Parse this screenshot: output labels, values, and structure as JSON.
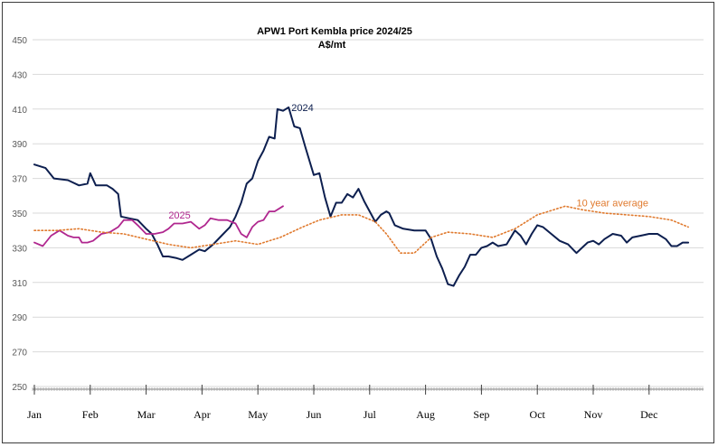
{
  "chart_data": {
    "type": "line",
    "title": "APW1 Port Kembla price 2024/25",
    "subtitle": "A$/mt",
    "ylim": [
      250,
      450
    ],
    "yticks": [
      250,
      270,
      290,
      310,
      330,
      350,
      370,
      390,
      410,
      430,
      450
    ],
    "grid": true,
    "months": [
      "Jan",
      "Feb",
      "Mar",
      "Apr",
      "May",
      "Jun",
      "Jul",
      "Aug",
      "Sep",
      "Oct",
      "Nov",
      "Dec"
    ],
    "series": [
      {
        "name": "2024",
        "color": "#0d1f4f",
        "style": "solid",
        "points": [
          [
            0.0,
            378
          ],
          [
            0.2,
            376
          ],
          [
            0.35,
            370
          ],
          [
            0.6,
            369
          ],
          [
            0.8,
            366
          ],
          [
            0.95,
            367
          ],
          [
            1.0,
            373
          ],
          [
            1.1,
            366
          ],
          [
            1.3,
            366
          ],
          [
            1.4,
            364
          ],
          [
            1.5,
            361
          ],
          [
            1.55,
            348
          ],
          [
            1.7,
            347
          ],
          [
            1.85,
            346
          ],
          [
            2.0,
            341
          ],
          [
            2.1,
            338
          ],
          [
            2.2,
            332
          ],
          [
            2.3,
            325
          ],
          [
            2.4,
            325
          ],
          [
            2.55,
            324
          ],
          [
            2.65,
            323
          ],
          [
            2.8,
            326
          ],
          [
            2.95,
            329
          ],
          [
            3.05,
            328
          ],
          [
            3.2,
            332
          ],
          [
            3.35,
            337
          ],
          [
            3.5,
            342
          ],
          [
            3.6,
            348
          ],
          [
            3.7,
            356
          ],
          [
            3.8,
            367
          ],
          [
            3.9,
            370
          ],
          [
            4.0,
            380
          ],
          [
            4.1,
            386
          ],
          [
            4.2,
            394
          ],
          [
            4.3,
            393
          ],
          [
            4.35,
            410
          ],
          [
            4.45,
            409
          ],
          [
            4.55,
            411
          ],
          [
            4.65,
            400
          ],
          [
            4.75,
            399
          ],
          [
            4.85,
            388
          ],
          [
            5.0,
            372
          ],
          [
            5.1,
            373
          ],
          [
            5.2,
            359
          ],
          [
            5.3,
            348
          ],
          [
            5.4,
            356
          ],
          [
            5.5,
            356
          ],
          [
            5.6,
            361
          ],
          [
            5.7,
            359
          ],
          [
            5.8,
            364
          ],
          [
            5.9,
            357
          ],
          [
            6.0,
            351
          ],
          [
            6.1,
            345
          ],
          [
            6.2,
            349
          ],
          [
            6.3,
            351
          ],
          [
            6.35,
            350
          ],
          [
            6.45,
            343
          ],
          [
            6.6,
            341
          ],
          [
            6.8,
            340
          ],
          [
            7.0,
            340
          ],
          [
            7.1,
            335
          ],
          [
            7.2,
            325
          ],
          [
            7.3,
            318
          ],
          [
            7.4,
            309
          ],
          [
            7.5,
            308
          ],
          [
            7.6,
            314
          ],
          [
            7.7,
            319
          ],
          [
            7.8,
            326
          ],
          [
            7.9,
            326
          ],
          [
            8.0,
            330
          ],
          [
            8.1,
            331
          ],
          [
            8.2,
            333
          ],
          [
            8.3,
            331
          ],
          [
            8.45,
            332
          ],
          [
            8.6,
            340
          ],
          [
            8.7,
            337
          ],
          [
            8.8,
            332
          ],
          [
            8.9,
            338
          ],
          [
            9.0,
            343
          ],
          [
            9.1,
            342
          ],
          [
            9.25,
            338
          ],
          [
            9.4,
            334
          ],
          [
            9.55,
            332
          ],
          [
            9.7,
            327
          ],
          [
            9.8,
            330
          ],
          [
            9.9,
            333
          ],
          [
            10.0,
            334
          ],
          [
            10.1,
            332
          ],
          [
            10.2,
            335
          ],
          [
            10.35,
            338
          ],
          [
            10.5,
            337
          ],
          [
            10.6,
            333
          ],
          [
            10.7,
            336
          ],
          [
            10.85,
            337
          ],
          [
            11.0,
            338
          ],
          [
            11.15,
            338
          ],
          [
            11.3,
            335
          ],
          [
            11.4,
            331
          ],
          [
            11.5,
            331
          ],
          [
            11.6,
            333
          ],
          [
            11.7,
            333
          ]
        ]
      },
      {
        "name": "2025",
        "color": "#b0278f",
        "style": "solid",
        "points": [
          [
            0.0,
            333
          ],
          [
            0.15,
            331
          ],
          [
            0.3,
            337
          ],
          [
            0.45,
            340
          ],
          [
            0.6,
            337
          ],
          [
            0.7,
            336
          ],
          [
            0.8,
            336
          ],
          [
            0.85,
            333
          ],
          [
            0.95,
            333
          ],
          [
            1.05,
            334
          ],
          [
            1.2,
            338
          ],
          [
            1.35,
            339
          ],
          [
            1.5,
            342
          ],
          [
            1.6,
            346
          ],
          [
            1.75,
            346
          ],
          [
            1.85,
            343
          ],
          [
            2.0,
            338
          ],
          [
            2.15,
            338
          ],
          [
            2.3,
            339
          ],
          [
            2.4,
            341
          ],
          [
            2.5,
            344
          ],
          [
            2.65,
            344
          ],
          [
            2.8,
            345
          ],
          [
            2.95,
            341
          ],
          [
            3.05,
            343
          ],
          [
            3.15,
            347
          ],
          [
            3.3,
            346
          ],
          [
            3.45,
            346
          ],
          [
            3.6,
            344
          ],
          [
            3.7,
            338
          ],
          [
            3.8,
            336
          ],
          [
            3.9,
            342
          ],
          [
            4.0,
            345
          ],
          [
            4.1,
            346
          ],
          [
            4.2,
            351
          ],
          [
            4.3,
            351
          ],
          [
            4.45,
            354
          ]
        ]
      },
      {
        "name": "10 year average",
        "color": "#e07a2e",
        "style": "dotted",
        "points": [
          [
            0.0,
            340
          ],
          [
            0.4,
            340
          ],
          [
            0.8,
            341
          ],
          [
            1.2,
            339
          ],
          [
            1.6,
            338
          ],
          [
            2.0,
            335
          ],
          [
            2.4,
            332
          ],
          [
            2.8,
            330
          ],
          [
            3.2,
            332
          ],
          [
            3.6,
            334
          ],
          [
            4.0,
            332
          ],
          [
            4.4,
            336
          ],
          [
            4.8,
            342
          ],
          [
            5.1,
            346
          ],
          [
            5.5,
            349
          ],
          [
            5.8,
            349
          ],
          [
            6.1,
            345
          ],
          [
            6.3,
            338
          ],
          [
            6.55,
            327
          ],
          [
            6.8,
            327
          ],
          [
            7.1,
            336
          ],
          [
            7.4,
            339
          ],
          [
            7.8,
            338
          ],
          [
            8.2,
            336
          ],
          [
            8.6,
            341
          ],
          [
            9.0,
            349
          ],
          [
            9.2,
            351
          ],
          [
            9.5,
            354
          ],
          [
            9.8,
            352
          ],
          [
            10.2,
            350
          ],
          [
            10.6,
            349
          ],
          [
            11.0,
            348
          ],
          [
            11.4,
            346
          ],
          [
            11.7,
            342
          ]
        ]
      }
    ],
    "annotations": [
      {
        "text": "2024",
        "series": "2024",
        "x": 4.6,
        "y": 411
      },
      {
        "text": "2025",
        "series": "2025",
        "x": 2.4,
        "y": 349
      },
      {
        "text": "10 year average",
        "series": "10 year average",
        "x": 9.7,
        "y": 356
      }
    ]
  }
}
